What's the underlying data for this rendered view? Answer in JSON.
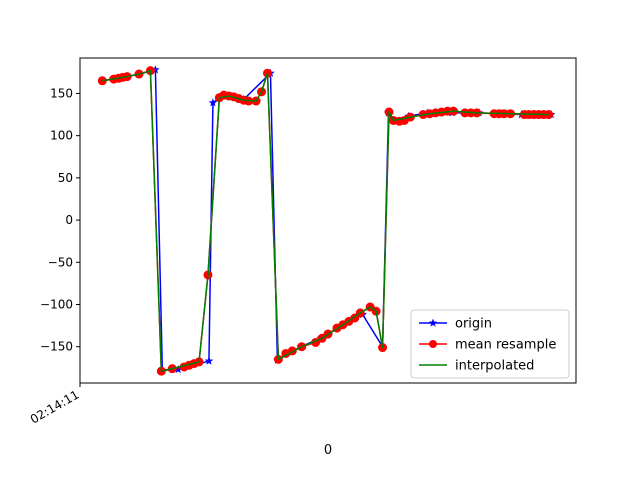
{
  "chart_data": {
    "type": "line",
    "xlabel": "0",
    "ylabel": "",
    "title": "",
    "x_tick_labels": [
      "02:14:11"
    ],
    "y_ticks": [
      -150,
      -100,
      -50,
      0,
      50,
      100,
      150
    ],
    "ylim": [
      -193,
      192
    ],
    "xlim": [
      0,
      100
    ],
    "grid": false,
    "legend_position": "lower-right",
    "series": [
      {
        "name": "origin",
        "color": "#0000ff",
        "marker": "star",
        "points": [
          [
            4.5,
            165
          ],
          [
            7.5,
            168
          ],
          [
            9.5,
            170
          ],
          [
            12.0,
            173
          ],
          [
            15.2,
            178
          ],
          [
            16.6,
            -178
          ],
          [
            19.8,
            -177
          ],
          [
            26.0,
            -167
          ],
          [
            26.8,
            139
          ],
          [
            28.6,
            147
          ],
          [
            33.0,
            143
          ],
          [
            38.4,
            174
          ],
          [
            39.8,
            -166
          ],
          [
            44.5,
            -150
          ],
          [
            48.5,
            -140
          ],
          [
            57.0,
            -112
          ],
          [
            61.0,
            -150
          ],
          [
            62.2,
            127
          ],
          [
            63.0,
            118
          ],
          [
            66.2,
            123
          ],
          [
            70.0,
            127
          ],
          [
            75.0,
            127
          ],
          [
            80.5,
            127
          ],
          [
            85.0,
            126
          ],
          [
            89.0,
            125
          ],
          [
            95.0,
            125
          ]
        ]
      },
      {
        "name": "mean resample",
        "color": "#ff0000",
        "marker": "circle",
        "points": [
          [
            4.5,
            165
          ],
          [
            6.8,
            167
          ],
          [
            7.8,
            168
          ],
          [
            8.6,
            169
          ],
          [
            9.5,
            170
          ],
          [
            11.9,
            173
          ],
          [
            14.2,
            177
          ],
          [
            16.4,
            -179
          ],
          [
            18.6,
            -176
          ],
          [
            21.0,
            -174
          ],
          [
            22.0,
            -172
          ],
          [
            23.0,
            -170
          ],
          [
            24.0,
            -168
          ],
          [
            25.8,
            -65
          ],
          [
            28.1,
            145
          ],
          [
            29.0,
            148
          ],
          [
            30.0,
            147
          ],
          [
            31.0,
            146
          ],
          [
            32.0,
            144
          ],
          [
            33.0,
            142
          ],
          [
            34.0,
            141
          ],
          [
            35.5,
            141
          ],
          [
            36.6,
            152
          ],
          [
            37.8,
            174
          ],
          [
            40.0,
            -165
          ],
          [
            41.5,
            -158
          ],
          [
            42.8,
            -155
          ],
          [
            44.7,
            -150
          ],
          [
            47.5,
            -145
          ],
          [
            48.8,
            -140
          ],
          [
            50.0,
            -135
          ],
          [
            51.8,
            -128
          ],
          [
            53.0,
            -124
          ],
          [
            54.2,
            -120
          ],
          [
            55.4,
            -116
          ],
          [
            56.5,
            -110
          ],
          [
            58.5,
            -103
          ],
          [
            59.7,
            -108
          ],
          [
            61.0,
            -151
          ],
          [
            62.3,
            128
          ],
          [
            63.2,
            118
          ],
          [
            64.4,
            117
          ],
          [
            65.4,
            118
          ],
          [
            66.6,
            122
          ],
          [
            69.2,
            125
          ],
          [
            70.5,
            126
          ],
          [
            71.7,
            127
          ],
          [
            72.9,
            128
          ],
          [
            74.1,
            129
          ],
          [
            75.3,
            129
          ],
          [
            77.6,
            127
          ],
          [
            78.8,
            127
          ],
          [
            80.0,
            127
          ],
          [
            83.5,
            126
          ],
          [
            84.5,
            126
          ],
          [
            85.5,
            126
          ],
          [
            86.8,
            126
          ],
          [
            89.6,
            125
          ],
          [
            90.5,
            125
          ],
          [
            91.5,
            125
          ],
          [
            92.5,
            125
          ],
          [
            93.5,
            125
          ],
          [
            94.5,
            125
          ]
        ]
      },
      {
        "name": "interpolated",
        "color": "#008000",
        "marker": "none",
        "points": [
          [
            4.5,
            165
          ],
          [
            7.5,
            168
          ],
          [
            9.5,
            170
          ],
          [
            12.0,
            173
          ],
          [
            14.2,
            177
          ],
          [
            16.4,
            -179
          ],
          [
            18.6,
            -176
          ],
          [
            24.0,
            -168
          ],
          [
            25.8,
            -65
          ],
          [
            28.1,
            145
          ],
          [
            30.0,
            147
          ],
          [
            33.0,
            142
          ],
          [
            35.5,
            141
          ],
          [
            36.6,
            152
          ],
          [
            37.8,
            174
          ],
          [
            40.0,
            -165
          ],
          [
            44.7,
            -150
          ],
          [
            48.8,
            -140
          ],
          [
            53.0,
            -124
          ],
          [
            56.5,
            -110
          ],
          [
            58.5,
            -103
          ],
          [
            59.7,
            -108
          ],
          [
            61.0,
            -151
          ],
          [
            62.3,
            128
          ],
          [
            63.2,
            118
          ],
          [
            66.6,
            122
          ],
          [
            70.5,
            126
          ],
          [
            75.3,
            129
          ],
          [
            80.0,
            127
          ],
          [
            86.8,
            126
          ],
          [
            94.5,
            125
          ]
        ]
      }
    ]
  }
}
